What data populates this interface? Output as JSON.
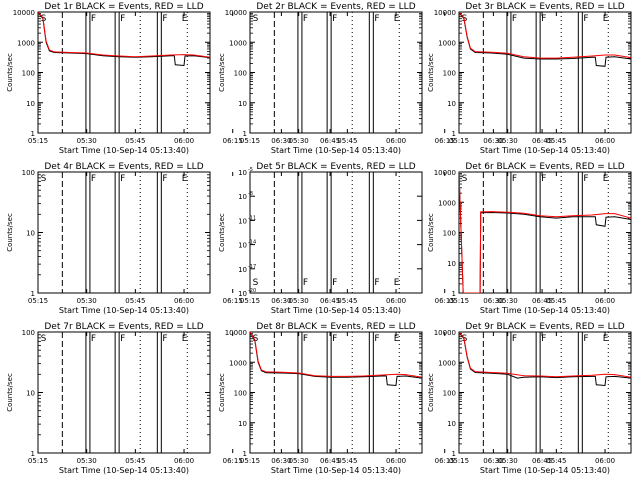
{
  "colors": {
    "events": "#000000",
    "lld": "#ff0000",
    "background": "#ffffff"
  },
  "shared": {
    "xlabel": "Start Time (10-Sep-14 05:13:40)",
    "ylabel": "Counts/sec",
    "xticks": [
      "05:15",
      "05:30",
      "05:45",
      "06:00",
      "06:15",
      "06:30",
      "06:45"
    ]
  },
  "chart_data": [
    {
      "type": "line",
      "title": "Det 1r BLACK = Events, RED = LLD",
      "xlim_min": [
        15,
        68
      ],
      "ylim": [
        1,
        10000
      ],
      "yscale": "log",
      "ytick_labels": [
        "1",
        "10",
        "100",
        "1000",
        "10000"
      ],
      "markers": [
        {
          "label": "S",
          "x_min": 15.5
        },
        {
          "label": "F",
          "x_min": 31
        },
        {
          "label": "F",
          "x_min": 40
        },
        {
          "label": "F",
          "x_min": 53
        },
        {
          "label": "E",
          "x_min": 59
        }
      ],
      "series": [
        {
          "name": "Events",
          "points": [
            [
              15,
              10000
            ],
            [
              16.5,
              6000
            ],
            [
              17.5,
              1000
            ],
            [
              18.5,
              520
            ],
            [
              20,
              460
            ],
            [
              25,
              440
            ],
            [
              30,
              420
            ],
            [
              35,
              360
            ],
            [
              40,
              330
            ],
            [
              45,
              320
            ],
            [
              50,
              330
            ],
            [
              56,
              360
            ],
            [
              57,
              360
            ],
            [
              57.3,
              180
            ],
            [
              60,
              170
            ],
            [
              60.3,
              350
            ],
            [
              63,
              360
            ],
            [
              68,
              310
            ]
          ]
        },
        {
          "name": "LLD",
          "points": [
            [
              15,
              10000
            ],
            [
              16.5,
              6500
            ],
            [
              17.5,
              1100
            ],
            [
              18.5,
              560
            ],
            [
              20,
              480
            ],
            [
              25,
              460
            ],
            [
              30,
              440
            ],
            [
              35,
              380
            ],
            [
              40,
              350
            ],
            [
              45,
              330
            ],
            [
              50,
              350
            ],
            [
              56,
              380
            ],
            [
              60,
              390
            ],
            [
              63,
              380
            ],
            [
              68,
              320
            ]
          ]
        }
      ]
    },
    {
      "type": "line",
      "title": "Det 2r BLACK = Events, RED = LLD",
      "xlim_min": [
        15,
        68
      ],
      "ylim": [
        1,
        10000
      ],
      "yscale": "log",
      "ytick_labels": [
        "1",
        "10",
        "100",
        "1000",
        "10000"
      ],
      "markers": [
        {
          "label": "S",
          "x_min": 15.5
        },
        {
          "label": "F",
          "x_min": 31
        },
        {
          "label": "F",
          "x_min": 40
        },
        {
          "label": "F",
          "x_min": 53
        },
        {
          "label": "E",
          "x_min": 59
        }
      ],
      "series": []
    },
    {
      "type": "line",
      "title": "Det 3r BLACK = Events, RED = LLD",
      "xlim_min": [
        15,
        68
      ],
      "ylim": [
        1,
        10000
      ],
      "yscale": "log",
      "ytick_labels": [
        "1",
        "10",
        "100",
        "1000",
        "10000"
      ],
      "markers": [
        {
          "label": "S",
          "x_min": 15.5
        },
        {
          "label": "F",
          "x_min": 31
        },
        {
          "label": "F",
          "x_min": 40
        },
        {
          "label": "F",
          "x_min": 53
        },
        {
          "label": "E",
          "x_min": 59
        }
      ],
      "series": [
        {
          "name": "Events",
          "points": [
            [
              15,
              10000
            ],
            [
              16.5,
              6000
            ],
            [
              17.5,
              1500
            ],
            [
              18.5,
              600
            ],
            [
              20,
              460
            ],
            [
              25,
              440
            ],
            [
              30,
              400
            ],
            [
              35,
              300
            ],
            [
              40,
              280
            ],
            [
              45,
              280
            ],
            [
              50,
              290
            ],
            [
              56,
              320
            ],
            [
              57,
              320
            ],
            [
              57.3,
              170
            ],
            [
              60,
              160
            ],
            [
              60.3,
              320
            ],
            [
              63,
              330
            ],
            [
              68,
              280
            ]
          ]
        },
        {
          "name": "LLD",
          "points": [
            [
              15,
              10000
            ],
            [
              16.5,
              6500
            ],
            [
              17.5,
              1600
            ],
            [
              18.5,
              640
            ],
            [
              20,
              490
            ],
            [
              25,
              470
            ],
            [
              30,
              430
            ],
            [
              35,
              330
            ],
            [
              40,
              300
            ],
            [
              45,
              300
            ],
            [
              50,
              320
            ],
            [
              56,
              350
            ],
            [
              60,
              380
            ],
            [
              63,
              380
            ],
            [
              68,
              310
            ]
          ]
        }
      ]
    },
    {
      "type": "line",
      "title": "Det 4r BLACK = Events, RED = LLD",
      "xlim_min": [
        15,
        68
      ],
      "ylim": [
        1,
        100
      ],
      "yscale": "log",
      "ytick_labels": [
        "1",
        "10",
        "100"
      ],
      "markers": [
        {
          "label": "S",
          "x_min": 15.5
        },
        {
          "label": "F",
          "x_min": 31
        },
        {
          "label": "F",
          "x_min": 40
        },
        {
          "label": "F",
          "x_min": 53
        },
        {
          "label": "E",
          "x_min": 59
        }
      ],
      "series": []
    },
    {
      "type": "line",
      "title": "Det 5r BLACK = Events, RED = LLD",
      "xlim_min": [
        15,
        68
      ],
      "ylim": [
        1e-20,
        1e-05
      ],
      "yscale": "log",
      "ytick_labels": [
        "10",
        "10",
        "10",
        "10",
        "10",
        "10"
      ],
      "ytick_exponents": [
        "-20",
        "-17",
        "-14",
        "-11",
        "-8",
        "-5"
      ],
      "markers": [
        {
          "label": "S",
          "x_min": 15.5
        },
        {
          "label": "F",
          "x_min": 31
        },
        {
          "label": "F",
          "x_min": 40
        },
        {
          "label": "F",
          "x_min": 53
        },
        {
          "label": "E",
          "x_min": 59
        }
      ],
      "series": []
    },
    {
      "type": "line",
      "title": "Det 6r BLACK = Events, RED = LLD",
      "xlim_min": [
        15,
        68
      ],
      "ylim": [
        1,
        10000
      ],
      "yscale": "log",
      "ytick_labels": [
        "1",
        "10",
        "100",
        "1000",
        "10000"
      ],
      "markers": [
        {
          "label": "S",
          "x_min": 15.5
        },
        {
          "label": "F",
          "x_min": 31
        },
        {
          "label": "F",
          "x_min": 40
        },
        {
          "label": "F",
          "x_min": 53
        },
        {
          "label": "E",
          "x_min": 59
        }
      ],
      "series": [
        {
          "name": "Events",
          "points": [
            [
              15,
              10000
            ],
            [
              16.3,
              1
            ],
            [
              21.5,
              1
            ],
            [
              21.7,
              450
            ],
            [
              25,
              460
            ],
            [
              30,
              440
            ],
            [
              35,
              400
            ],
            [
              40,
              330
            ],
            [
              45,
              300
            ],
            [
              50,
              330
            ],
            [
              56,
              330
            ],
            [
              57,
              330
            ],
            [
              57.3,
              180
            ],
            [
              60,
              160
            ],
            [
              60.3,
              320
            ],
            [
              63,
              330
            ],
            [
              68,
              270
            ]
          ]
        },
        {
          "name": "LLD",
          "points": [
            [
              15,
              10000
            ],
            [
              16.3,
              1
            ],
            [
              21.5,
              1
            ],
            [
              21.7,
              480
            ],
            [
              25,
              490
            ],
            [
              30,
              470
            ],
            [
              35,
              430
            ],
            [
              40,
              360
            ],
            [
              45,
              330
            ],
            [
              50,
              360
            ],
            [
              56,
              380
            ],
            [
              60,
              420
            ],
            [
              63,
              420
            ],
            [
              68,
              300
            ]
          ]
        }
      ]
    },
    {
      "type": "line",
      "title": "Det 7r BLACK = Events, RED = LLD",
      "xlim_min": [
        15,
        68
      ],
      "ylim": [
        1,
        100
      ],
      "yscale": "log",
      "ytick_labels": [
        "1",
        "10",
        "100"
      ],
      "markers": [
        {
          "label": "S",
          "x_min": 15.5
        },
        {
          "label": "F",
          "x_min": 31
        },
        {
          "label": "F",
          "x_min": 40
        },
        {
          "label": "F",
          "x_min": 53
        },
        {
          "label": "E",
          "x_min": 59
        }
      ],
      "series": []
    },
    {
      "type": "line",
      "title": "Det 8r BLACK = Events, RED = LLD",
      "xlim_min": [
        15,
        68
      ],
      "ylim": [
        1,
        10000
      ],
      "yscale": "log",
      "ytick_labels": [
        "1",
        "10",
        "100",
        "1000",
        "10000"
      ],
      "markers": [
        {
          "label": "S",
          "x_min": 15.5
        },
        {
          "label": "F",
          "x_min": 31
        },
        {
          "label": "F",
          "x_min": 40
        },
        {
          "label": "F",
          "x_min": 53
        },
        {
          "label": "E",
          "x_min": 59
        }
      ],
      "series": [
        {
          "name": "Events",
          "points": [
            [
              15,
              10000
            ],
            [
              16.5,
              5000
            ],
            [
              17.5,
              1000
            ],
            [
              18.5,
              520
            ],
            [
              20,
              450
            ],
            [
              25,
              440
            ],
            [
              30,
              420
            ],
            [
              35,
              340
            ],
            [
              40,
              320
            ],
            [
              45,
              320
            ],
            [
              50,
              330
            ],
            [
              56,
              350
            ],
            [
              57,
              350
            ],
            [
              57.3,
              180
            ],
            [
              60,
              170
            ],
            [
              60.3,
              340
            ],
            [
              63,
              350
            ],
            [
              68,
              300
            ]
          ]
        },
        {
          "name": "LLD",
          "points": [
            [
              15,
              10000
            ],
            [
              16.5,
              5500
            ],
            [
              17.5,
              1100
            ],
            [
              18.5,
              560
            ],
            [
              20,
              480
            ],
            [
              25,
              470
            ],
            [
              30,
              440
            ],
            [
              35,
              360
            ],
            [
              40,
              340
            ],
            [
              45,
              340
            ],
            [
              50,
              350
            ],
            [
              56,
              380
            ],
            [
              60,
              400
            ],
            [
              63,
              390
            ],
            [
              68,
              320
            ]
          ]
        }
      ]
    },
    {
      "type": "line",
      "title": "Det 9r BLACK = Events, RED = LLD",
      "xlim_min": [
        15,
        68
      ],
      "ylim": [
        1,
        10000
      ],
      "yscale": "log",
      "ytick_labels": [
        "1",
        "10",
        "100",
        "1000",
        "10000"
      ],
      "markers": [
        {
          "label": "S",
          "x_min": 15.5
        },
        {
          "label": "F",
          "x_min": 31
        },
        {
          "label": "F",
          "x_min": 40
        },
        {
          "label": "F",
          "x_min": 53
        },
        {
          "label": "E",
          "x_min": 59
        }
      ],
      "series": [
        {
          "name": "Events",
          "points": [
            [
              15,
              10000
            ],
            [
              16.5,
              6000
            ],
            [
              17.5,
              1500
            ],
            [
              18.5,
              600
            ],
            [
              20,
              460
            ],
            [
              25,
              430
            ],
            [
              30,
              400
            ],
            [
              33,
              300
            ],
            [
              35,
              320
            ],
            [
              40,
              330
            ],
            [
              45,
              310
            ],
            [
              50,
              330
            ],
            [
              56,
              340
            ],
            [
              57,
              340
            ],
            [
              57.3,
              180
            ],
            [
              60,
              170
            ],
            [
              60.3,
              330
            ],
            [
              63,
              340
            ],
            [
              68,
              300
            ]
          ]
        },
        {
          "name": "LLD",
          "points": [
            [
              15,
              10000
            ],
            [
              16.5,
              6500
            ],
            [
              17.5,
              1600
            ],
            [
              18.5,
              640
            ],
            [
              20,
              490
            ],
            [
              25,
              460
            ],
            [
              30,
              430
            ],
            [
              35,
              360
            ],
            [
              40,
              350
            ],
            [
              45,
              330
            ],
            [
              50,
              350
            ],
            [
              56,
              370
            ],
            [
              60,
              400
            ],
            [
              63,
              390
            ],
            [
              68,
              320
            ]
          ]
        }
      ]
    }
  ]
}
